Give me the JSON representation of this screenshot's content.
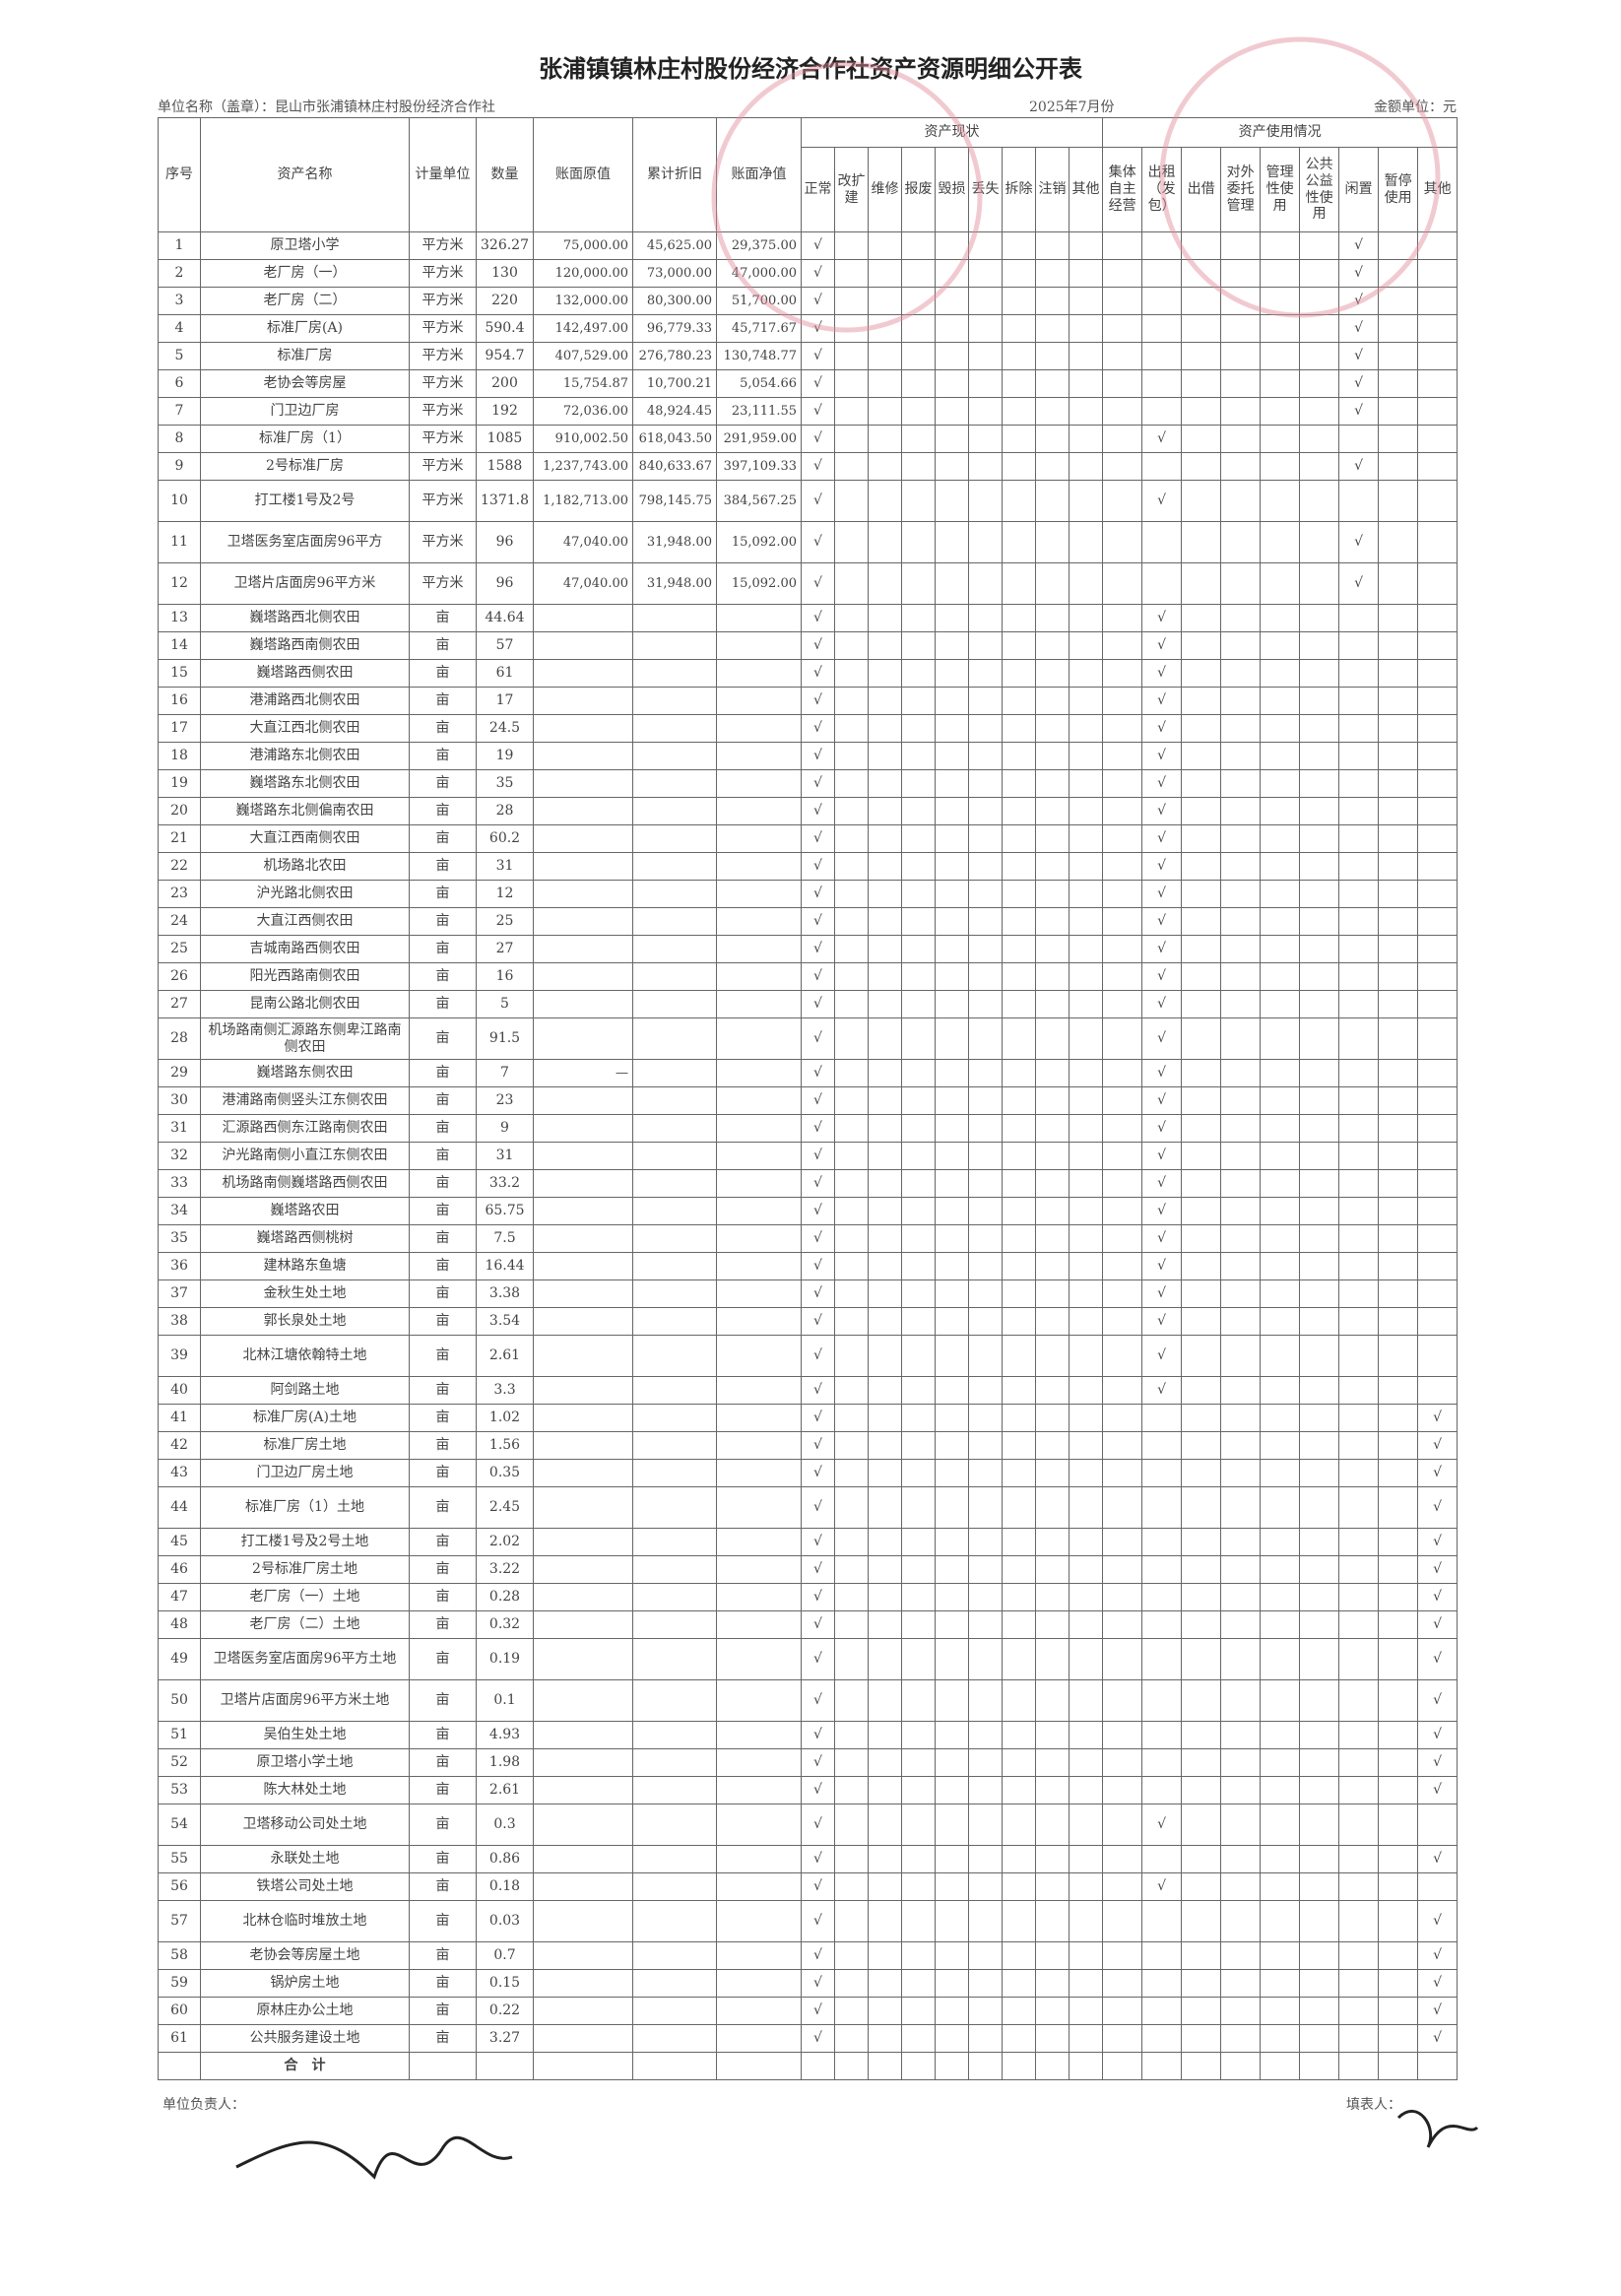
{
  "header": {
    "title": "张浦镇镇林庄村股份经济合作社资产资源明细公开表",
    "unit_name": "单位名称（盖章）：昆山市张浦镇林庄村股份经济合作社",
    "period": "2025年7月份",
    "amount_unit": "金额单位：元"
  },
  "table": {
    "columns": [
      {
        "key": "no",
        "label": "序号"
      },
      {
        "key": "name",
        "label": "资产名称"
      },
      {
        "key": "unit",
        "label": "计量单位"
      },
      {
        "key": "qty",
        "label": "数量"
      },
      {
        "key": "original",
        "label": "账面原值"
      },
      {
        "key": "depreciation",
        "label": "累计折旧"
      },
      {
        "key": "net",
        "label": "账面净值"
      }
    ],
    "status_group": {
      "label": "资产现状",
      "columns": [
        {
          "key": "normal",
          "label": "正常"
        },
        {
          "key": "rebuild",
          "label": "改扩建"
        },
        {
          "key": "repair",
          "label": "维修"
        },
        {
          "key": "scrap",
          "label": "报废"
        },
        {
          "key": "damaged",
          "label": "毁损"
        },
        {
          "key": "lost",
          "label": "丢失"
        },
        {
          "key": "demolished",
          "label": "拆除"
        },
        {
          "key": "cancelled",
          "label": "注销"
        },
        {
          "key": "other",
          "label": "其他"
        }
      ]
    },
    "usage_group": {
      "label": "资产使用情况",
      "columns": [
        {
          "key": "self_run",
          "label": "集体自主经营"
        },
        {
          "key": "lease",
          "label": "出租（发包）"
        },
        {
          "key": "lend",
          "label": "出借"
        },
        {
          "key": "entrusted",
          "label": "对外委托管理"
        },
        {
          "key": "admin_use",
          "label": "管理性使用"
        },
        {
          "key": "public_use",
          "label": "公共公益性使用"
        },
        {
          "key": "idle",
          "label": "闲置"
        },
        {
          "key": "suspended",
          "label": "暂停使用"
        },
        {
          "key": "usage_other",
          "label": "其他"
        }
      ]
    },
    "rows": [
      {
        "no": "1",
        "name": "原卫塔小学",
        "unit": "平方米",
        "qty": "326.27",
        "original": "75,000.00",
        "depreciation": "45,625.00",
        "net": "29,375.00",
        "normal": "√",
        "idle": "√"
      },
      {
        "no": "2",
        "name": "老厂房（一）",
        "unit": "平方米",
        "qty": "130",
        "original": "120,000.00",
        "depreciation": "73,000.00",
        "net": "47,000.00",
        "normal": "√",
        "idle": "√"
      },
      {
        "no": "3",
        "name": "老厂房（二）",
        "unit": "平方米",
        "qty": "220",
        "original": "132,000.00",
        "depreciation": "80,300.00",
        "net": "51,700.00",
        "normal": "√",
        "idle": "√"
      },
      {
        "no": "4",
        "name": "标准厂房(A)",
        "unit": "平方米",
        "qty": "590.4",
        "original": "142,497.00",
        "depreciation": "96,779.33",
        "net": "45,717.67",
        "normal": "√",
        "idle": "√"
      },
      {
        "no": "5",
        "name": "标准厂房",
        "unit": "平方米",
        "qty": "954.7",
        "original": "407,529.00",
        "depreciation": "276,780.23",
        "net": "130,748.77",
        "normal": "√",
        "idle": "√"
      },
      {
        "no": "6",
        "name": "老协会等房屋",
        "unit": "平方米",
        "qty": "200",
        "original": "15,754.87",
        "depreciation": "10,700.21",
        "net": "5,054.66",
        "normal": "√",
        "idle": "√"
      },
      {
        "no": "7",
        "name": "门卫边厂房",
        "unit": "平方米",
        "qty": "192",
        "original": "72,036.00",
        "depreciation": "48,924.45",
        "net": "23,111.55",
        "normal": "√",
        "idle": "√"
      },
      {
        "no": "8",
        "name": "标准厂房（1）",
        "unit": "平方米",
        "qty": "1085",
        "original": "910,002.50",
        "depreciation": "618,043.50",
        "net": "291,959.00",
        "normal": "√",
        "lease": "√"
      },
      {
        "no": "9",
        "name": "2号标准厂房",
        "unit": "平方米",
        "qty": "1588",
        "original": "1,237,743.00",
        "depreciation": "840,633.67",
        "net": "397,109.33",
        "normal": "√",
        "idle": "√"
      },
      {
        "no": "10",
        "name": "打工楼1号及2号",
        "unit": "平方米",
        "qty": "1371.8",
        "original": "1,182,713.00",
        "depreciation": "798,145.75",
        "net": "384,567.25",
        "normal": "√",
        "lease": "√"
      },
      {
        "no": "11",
        "name": "卫塔医务室店面房96平方",
        "unit": "平方米",
        "qty": "96",
        "original": "47,040.00",
        "depreciation": "31,948.00",
        "net": "15,092.00",
        "normal": "√",
        "idle": "√"
      },
      {
        "no": "12",
        "name": "卫塔片店面房96平方米",
        "unit": "平方米",
        "qty": "96",
        "original": "47,040.00",
        "depreciation": "31,948.00",
        "net": "15,092.00",
        "normal": "√",
        "idle": "√"
      },
      {
        "no": "13",
        "name": "巍塔路西北侧农田",
        "unit": "亩",
        "qty": "44.64",
        "normal": "√",
        "lease": "√"
      },
      {
        "no": "14",
        "name": "巍塔路西南侧农田",
        "unit": "亩",
        "qty": "57",
        "normal": "√",
        "lease": "√"
      },
      {
        "no": "15",
        "name": "巍塔路西侧农田",
        "unit": "亩",
        "qty": "61",
        "normal": "√",
        "lease": "√"
      },
      {
        "no": "16",
        "name": "港浦路西北侧农田",
        "unit": "亩",
        "qty": "17",
        "normal": "√",
        "lease": "√"
      },
      {
        "no": "17",
        "name": "大直江西北侧农田",
        "unit": "亩",
        "qty": "24.5",
        "normal": "√",
        "lease": "√"
      },
      {
        "no": "18",
        "name": "港浦路东北侧农田",
        "unit": "亩",
        "qty": "19",
        "normal": "√",
        "lease": "√"
      },
      {
        "no": "19",
        "name": "巍塔路东北侧农田",
        "unit": "亩",
        "qty": "35",
        "normal": "√",
        "lease": "√"
      },
      {
        "no": "20",
        "name": "巍塔路东北侧偏南农田",
        "unit": "亩",
        "qty": "28",
        "normal": "√",
        "lease": "√"
      },
      {
        "no": "21",
        "name": "大直江西南侧农田",
        "unit": "亩",
        "qty": "60.2",
        "normal": "√",
        "lease": "√"
      },
      {
        "no": "22",
        "name": "机场路北农田",
        "unit": "亩",
        "qty": "31",
        "normal": "√",
        "lease": "√"
      },
      {
        "no": "23",
        "name": "沪光路北侧农田",
        "unit": "亩",
        "qty": "12",
        "normal": "√",
        "lease": "√"
      },
      {
        "no": "24",
        "name": "大直江西侧农田",
        "unit": "亩",
        "qty": "25",
        "normal": "√",
        "lease": "√"
      },
      {
        "no": "25",
        "name": "吉城南路西侧农田",
        "unit": "亩",
        "qty": "27",
        "normal": "√",
        "lease": "√"
      },
      {
        "no": "26",
        "name": "阳光西路南侧农田",
        "unit": "亩",
        "qty": "16",
        "normal": "√",
        "lease": "√"
      },
      {
        "no": "27",
        "name": "昆南公路北侧农田",
        "unit": "亩",
        "qty": "5",
        "normal": "√",
        "lease": "√"
      },
      {
        "no": "28",
        "name": "机场路南侧汇源路东侧卑江路南侧农田",
        "unit": "亩",
        "qty": "91.5",
        "normal": "√",
        "lease": "√"
      },
      {
        "no": "29",
        "name": "巍塔路东侧农田",
        "unit": "亩",
        "qty": "7",
        "original": "—",
        "normal": "√",
        "lease": "√"
      },
      {
        "no": "30",
        "name": "港浦路南侧竖头江东侧农田",
        "unit": "亩",
        "qty": "23",
        "normal": "√",
        "lease": "√"
      },
      {
        "no": "31",
        "name": "汇源路西侧东江路南侧农田",
        "unit": "亩",
        "qty": "9",
        "normal": "√",
        "lease": "√"
      },
      {
        "no": "32",
        "name": "沪光路南侧小直江东侧农田",
        "unit": "亩",
        "qty": "31",
        "normal": "√",
        "lease": "√"
      },
      {
        "no": "33",
        "name": "机场路南侧巍塔路西侧农田",
        "unit": "亩",
        "qty": "33.2",
        "normal": "√",
        "lease": "√"
      },
      {
        "no": "34",
        "name": "巍塔路农田",
        "unit": "亩",
        "qty": "65.75",
        "normal": "√",
        "lease": "√"
      },
      {
        "no": "35",
        "name": "巍塔路西侧桃树",
        "unit": "亩",
        "qty": "7.5",
        "normal": "√",
        "lease": "√"
      },
      {
        "no": "36",
        "name": "建林路东鱼塘",
        "unit": "亩",
        "qty": "16.44",
        "normal": "√",
        "lease": "√"
      },
      {
        "no": "37",
        "name": "金秋生处土地",
        "unit": "亩",
        "qty": "3.38",
        "normal": "√",
        "lease": "√"
      },
      {
        "no": "38",
        "name": "郭长泉处土地",
        "unit": "亩",
        "qty": "3.54",
        "normal": "√",
        "lease": "√"
      },
      {
        "no": "39",
        "name": "北林江塘依翰特土地",
        "unit": "亩",
        "qty": "2.61",
        "normal": "√",
        "lease": "√"
      },
      {
        "no": "40",
        "name": "阿剑路土地",
        "unit": "亩",
        "qty": "3.3",
        "normal": "√",
        "lease": "√"
      },
      {
        "no": "41",
        "name": "标准厂房(A)土地",
        "unit": "亩",
        "qty": "1.02",
        "normal": "√",
        "usage_other": "√"
      },
      {
        "no": "42",
        "name": "标准厂房土地",
        "unit": "亩",
        "qty": "1.56",
        "normal": "√",
        "usage_other": "√"
      },
      {
        "no": "43",
        "name": "门卫边厂房土地",
        "unit": "亩",
        "qty": "0.35",
        "normal": "√",
        "usage_other": "√"
      },
      {
        "no": "44",
        "name": "标准厂房（1）土地",
        "unit": "亩",
        "qty": "2.45",
        "normal": "√",
        "usage_other": "√"
      },
      {
        "no": "45",
        "name": "打工楼1号及2号土地",
        "unit": "亩",
        "qty": "2.02",
        "normal": "√",
        "usage_other": "√"
      },
      {
        "no": "46",
        "name": "2号标准厂房土地",
        "unit": "亩",
        "qty": "3.22",
        "normal": "√",
        "usage_other": "√"
      },
      {
        "no": "47",
        "name": "老厂房（一）土地",
        "unit": "亩",
        "qty": "0.28",
        "normal": "√",
        "usage_other": "√"
      },
      {
        "no": "48",
        "name": "老厂房（二）土地",
        "unit": "亩",
        "qty": "0.32",
        "normal": "√",
        "usage_other": "√"
      },
      {
        "no": "49",
        "name": "卫塔医务室店面房96平方土地",
        "unit": "亩",
        "qty": "0.19",
        "normal": "√",
        "usage_other": "√"
      },
      {
        "no": "50",
        "name": "卫塔片店面房96平方米土地",
        "unit": "亩",
        "qty": "0.1",
        "normal": "√",
        "usage_other": "√"
      },
      {
        "no": "51",
        "name": "吴伯生处土地",
        "unit": "亩",
        "qty": "4.93",
        "normal": "√",
        "usage_other": "√"
      },
      {
        "no": "52",
        "name": "原卫塔小学土地",
        "unit": "亩",
        "qty": "1.98",
        "normal": "√",
        "usage_other": "√"
      },
      {
        "no": "53",
        "name": "陈大林处土地",
        "unit": "亩",
        "qty": "2.61",
        "normal": "√",
        "usage_other": "√"
      },
      {
        "no": "54",
        "name": "卫塔移动公司处土地",
        "unit": "亩",
        "qty": "0.3",
        "normal": "√",
        "lease": "√"
      },
      {
        "no": "55",
        "name": "永联处土地",
        "unit": "亩",
        "qty": "0.86",
        "normal": "√",
        "usage_other": "√"
      },
      {
        "no": "56",
        "name": "铁塔公司处土地",
        "unit": "亩",
        "qty": "0.18",
        "normal": "√",
        "lease": "√"
      },
      {
        "no": "57",
        "name": "北林仓临时堆放土地",
        "unit": "亩",
        "qty": "0.03",
        "normal": "√",
        "usage_other": "√"
      },
      {
        "no": "58",
        "name": "老协会等房屋土地",
        "unit": "亩",
        "qty": "0.7",
        "normal": "√",
        "usage_other": "√"
      },
      {
        "no": "59",
        "name": "锅炉房土地",
        "unit": "亩",
        "qty": "0.15",
        "normal": "√",
        "usage_other": "√"
      },
      {
        "no": "60",
        "name": "原林庄办公土地",
        "unit": "亩",
        "qty": "0.22",
        "normal": "√",
        "usage_other": "√"
      },
      {
        "no": "61",
        "name": "公共服务建设土地",
        "unit": "亩",
        "qty": "3.27",
        "normal": "√",
        "usage_other": "√"
      }
    ],
    "total_label": "合　计"
  },
  "footer": {
    "leader": "单位负责人：",
    "preparer": "填表人："
  }
}
